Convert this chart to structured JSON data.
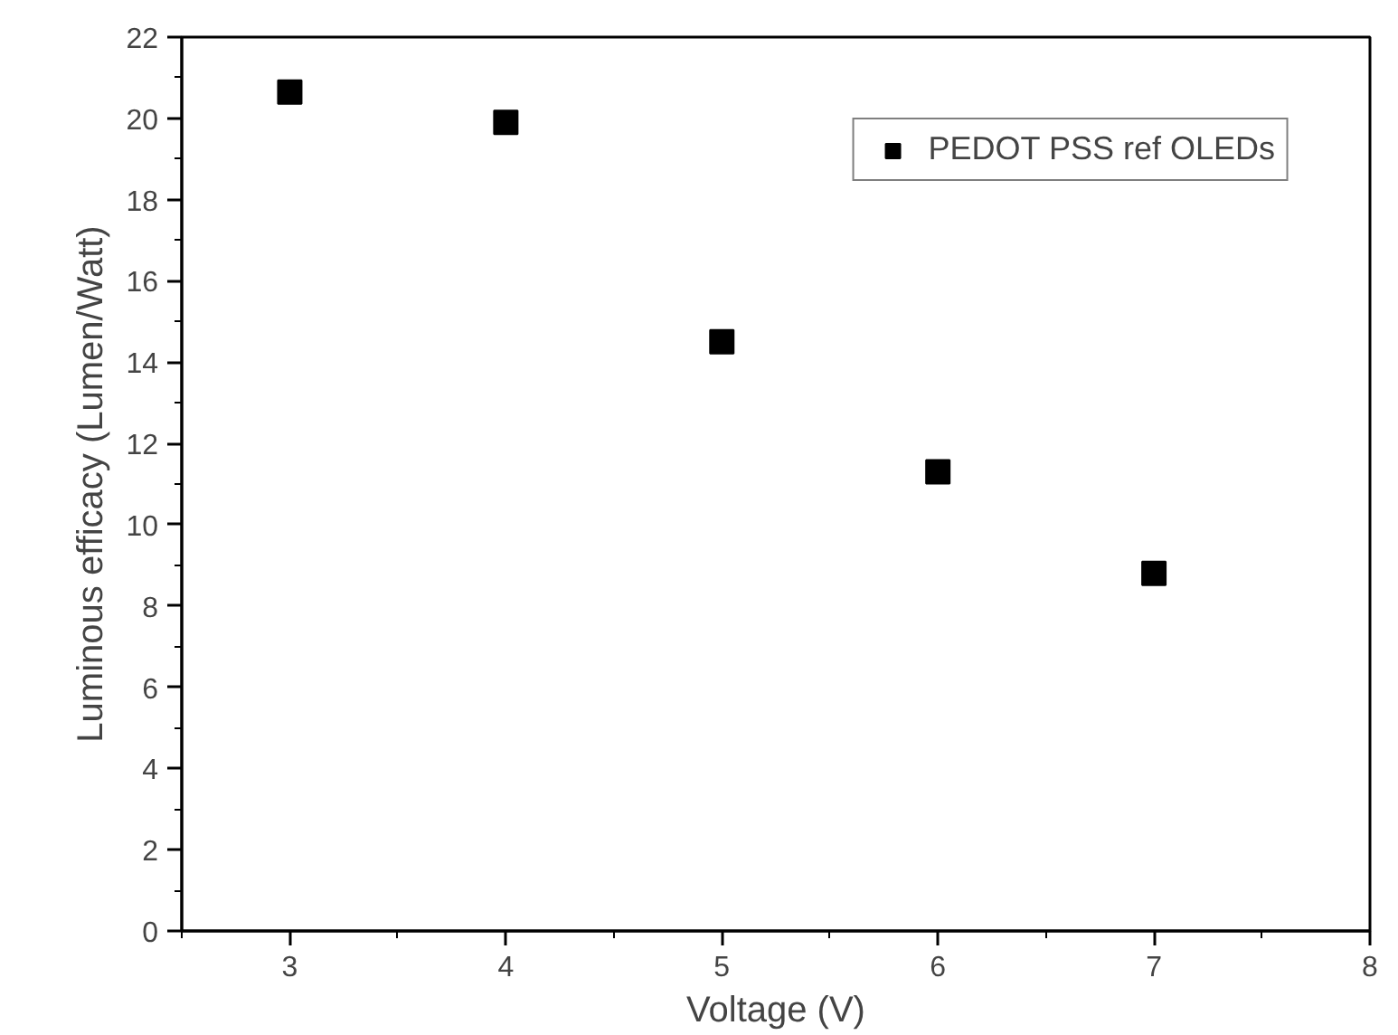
{
  "chart_data": {
    "type": "scatter",
    "xlabel": "Voltage (V)",
    "ylabel": "Luminous efficacy (Lumen/Watt)",
    "x": [
      3,
      4,
      5,
      6,
      7
    ],
    "series": [
      {
        "name": "PEDOT PSS ref OLEDs",
        "color": "#000000",
        "values": [
          20.65,
          19.9,
          14.5,
          11.3,
          8.8
        ]
      }
    ],
    "xlim": [
      2.5,
      8
    ],
    "ylim": [
      0,
      22
    ],
    "xticks": [
      3,
      4,
      5,
      6,
      7,
      8
    ],
    "yticks": [
      0,
      2,
      4,
      6,
      8,
      10,
      12,
      14,
      16,
      18,
      20,
      22
    ],
    "marker": "square",
    "legend": "top right",
    "grid": false
  }
}
